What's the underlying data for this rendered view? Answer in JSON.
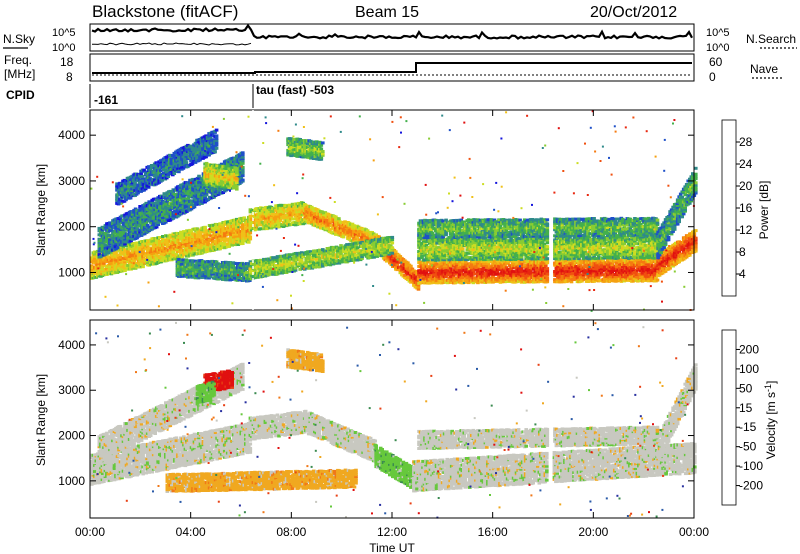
{
  "header": {
    "station": "Blackstone (fitACF)",
    "beam": "Beam 15",
    "date": "20/Oct/2012"
  },
  "noise_panel": {
    "left_label": "N.Sky",
    "right_label": "N.Search",
    "left_ticks": [
      "10^5",
      "10^0"
    ],
    "right_ticks": [
      "10^5",
      "10^0"
    ]
  },
  "freq_panel": {
    "left_label_1": "Freq.",
    "left_label_2": "[MHz]",
    "right_label": "Nave",
    "left_ticks": [
      "18",
      "8"
    ],
    "right_ticks": [
      "60",
      "0"
    ]
  },
  "cpid_panel": {
    "label": "CPID",
    "segments": [
      "-161",
      "tau (fast) -503"
    ]
  },
  "time_axis": {
    "label": "Time UT",
    "ticks": [
      "00:00",
      "04:00",
      "08:00",
      "12:00",
      "16:00",
      "20:00",
      "00:00"
    ]
  },
  "chart_data": [
    {
      "type": "heatmap",
      "name": "power",
      "ylabel": "Slant Range [km]",
      "yticks": [
        1000,
        2000,
        3000,
        4000
      ],
      "ylim": [
        180,
        4550
      ],
      "xlim_hours": [
        0,
        24
      ],
      "colorbar_label": "Power [dB]",
      "colorbar_ticks": [
        4,
        8,
        12,
        16,
        20,
        24,
        28
      ],
      "colorbar_colors": [
        "#1414dc",
        "#1e50c8",
        "#2f8a8a",
        "#44b04c",
        "#88cc33",
        "#ccdd22",
        "#f0c018",
        "#f5a010",
        "#f57a10",
        "#f05010",
        "#e82810",
        "#e01010"
      ],
      "bands": [
        {
          "start": 0.0,
          "end": 6.3,
          "r0": 1150,
          "r1": 1950,
          "width": 260,
          "level": 0.65
        },
        {
          "start": 0.3,
          "end": 6.0,
          "r0": 1650,
          "r1": 3300,
          "width": 300,
          "level": 0.25
        },
        {
          "start": 1.0,
          "end": 5.0,
          "r0": 2700,
          "r1": 3900,
          "width": 220,
          "level": 0.2
        },
        {
          "start": 3.4,
          "end": 6.3,
          "r0": 1100,
          "r1": 1000,
          "width": 180,
          "level": 0.3
        },
        {
          "start": 4.5,
          "end": 5.8,
          "r0": 3150,
          "r1": 3050,
          "width": 220,
          "level": 0.55
        },
        {
          "start": 6.3,
          "end": 8.5,
          "r0": 2150,
          "r1": 2300,
          "width": 220,
          "level": 0.6
        },
        {
          "start": 8.5,
          "end": 11.3,
          "r0": 2300,
          "r1": 1650,
          "width": 200,
          "level": 0.72
        },
        {
          "start": 11.3,
          "end": 13.0,
          "r0": 1650,
          "r1": 800,
          "width": 200,
          "level": 0.9
        },
        {
          "start": 13.0,
          "end": 22.5,
          "r0": 1000,
          "r1": 1050,
          "width": 220,
          "level": 0.92
        },
        {
          "start": 13.0,
          "end": 22.5,
          "r0": 1500,
          "r1": 1550,
          "width": 220,
          "level": 0.45
        },
        {
          "start": 13.0,
          "end": 22.5,
          "r0": 1950,
          "r1": 2000,
          "width": 160,
          "level": 0.35
        },
        {
          "start": 22.5,
          "end": 24.0,
          "r0": 1150,
          "r1": 1700,
          "width": 220,
          "level": 0.92
        },
        {
          "start": 22.5,
          "end": 24.0,
          "r0": 1600,
          "r1": 3000,
          "width": 260,
          "level": 0.3
        },
        {
          "start": 6.3,
          "end": 12.0,
          "r0": 1050,
          "r1": 1600,
          "width": 180,
          "level": 0.45
        },
        {
          "start": 7.8,
          "end": 9.2,
          "r0": 3750,
          "r1": 3650,
          "width": 200,
          "level": 0.4
        }
      ]
    },
    {
      "type": "heatmap",
      "name": "velocity",
      "ylabel": "Slant Range [km]",
      "yticks": [
        1000,
        2000,
        3000,
        4000
      ],
      "ylim": [
        180,
        4550
      ],
      "xlim_hours": [
        0,
        24
      ],
      "colorbar_label": "Velocity [m s^-1]",
      "colorbar_ticks": [
        200,
        100,
        50,
        15,
        -15,
        -50,
        -100,
        -200
      ],
      "colorbar_colors": [
        "#2830a0",
        "#2a5aa8",
        "#3a8a50",
        "#66c83c",
        "#c8c8c0",
        "#f0a820",
        "#f07818",
        "#e84014",
        "#e01010"
      ],
      "bands": [
        {
          "start": 0.0,
          "end": 6.3,
          "r0": 1250,
          "r1": 1950,
          "width": 300,
          "color": 4
        },
        {
          "start": 0.3,
          "end": 6.0,
          "r0": 1700,
          "r1": 3300,
          "width": 260,
          "color": 4
        },
        {
          "start": 6.3,
          "end": 8.5,
          "r0": 2150,
          "r1": 2300,
          "width": 240,
          "color": 4
        },
        {
          "start": 8.5,
          "end": 11.3,
          "r0": 2300,
          "r1": 1650,
          "width": 240,
          "color": 4
        },
        {
          "start": 11.3,
          "end": 12.8,
          "r0": 1550,
          "r1": 1050,
          "width": 240,
          "color": 3
        },
        {
          "start": 12.8,
          "end": 24.0,
          "r0": 1100,
          "r1": 1500,
          "width": 300,
          "color": 4
        },
        {
          "start": 13.0,
          "end": 22.5,
          "r0": 1900,
          "r1": 2000,
          "width": 200,
          "color": 4
        },
        {
          "start": 3.0,
          "end": 10.5,
          "r0": 950,
          "r1": 1050,
          "width": 200,
          "color": 5
        },
        {
          "start": 4.5,
          "end": 5.6,
          "r0": 3150,
          "r1": 3250,
          "width": 180,
          "color": 8
        },
        {
          "start": 4.2,
          "end": 4.9,
          "r0": 2900,
          "r1": 3000,
          "width": 160,
          "color": 3
        },
        {
          "start": 7.8,
          "end": 9.2,
          "r0": 3700,
          "r1": 3600,
          "width": 180,
          "color": 5
        },
        {
          "start": 22.5,
          "end": 24.0,
          "r0": 1700,
          "r1": 3300,
          "width": 260,
          "color": 4
        }
      ]
    }
  ]
}
